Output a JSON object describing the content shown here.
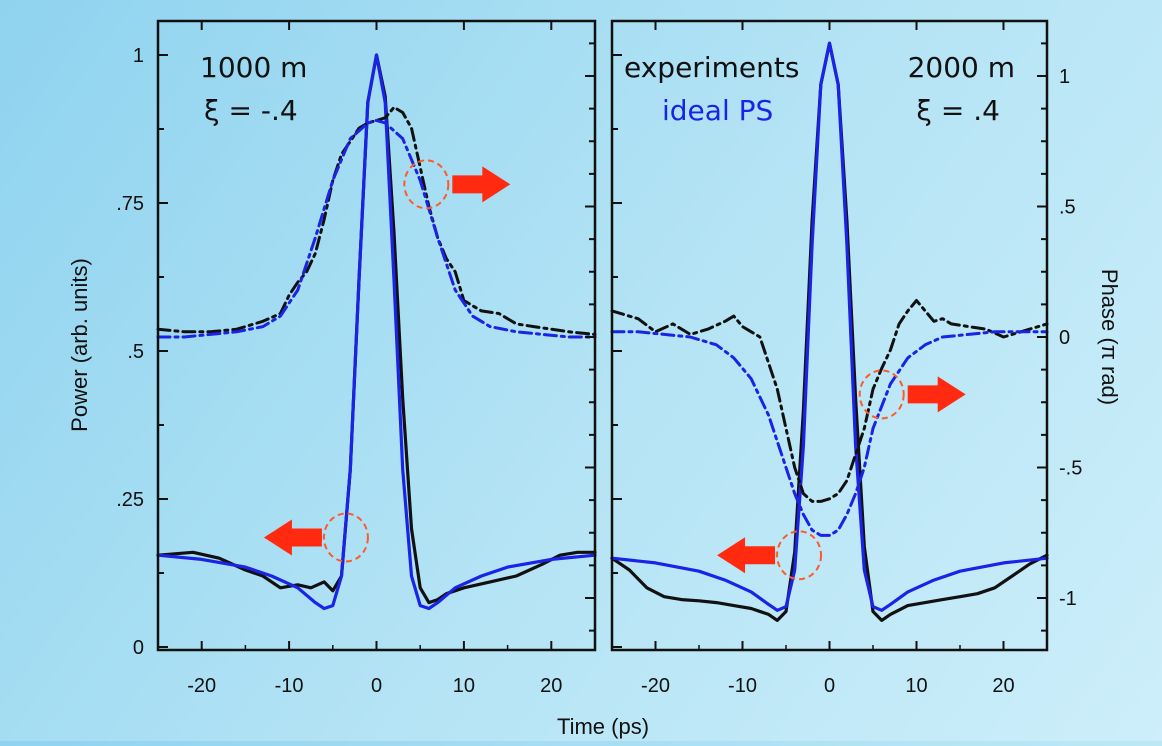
{
  "colors": {
    "experiment": "#111111",
    "ideal": "#1a23e6",
    "arrow": "#ff2a10",
    "circle": "#ff5a2a",
    "frame": "#111111"
  },
  "chart_data": {
    "type": "line",
    "xlabel": "Time (ps)",
    "ylabel_left": "Power (arb. units)",
    "ylabel_right": "Phase (π rad)",
    "xlim": [
      -25,
      25
    ],
    "x_ticks": [
      -20,
      -10,
      0,
      10,
      20
    ],
    "x_tick_labels": [
      "-20",
      "-10",
      "0",
      "10",
      "20"
    ],
    "power_ylim": [
      0,
      1.0
    ],
    "power_ticks": [
      0,
      0.25,
      0.5,
      0.75,
      1
    ],
    "power_tick_labels": [
      "0",
      ".25",
      ".5",
      ".75",
      "1"
    ],
    "phase_ylim": [
      -1.2,
      1.2
    ],
    "phase_ticks": [
      -1,
      -0.5,
      0,
      0.5,
      1
    ],
    "phase_tick_labels": [
      "-1",
      "-.5",
      "0",
      ".5",
      "1"
    ],
    "legend": {
      "experiments": "experiments",
      "ideal": "ideal PS",
      "placement": "top-right"
    },
    "panels": [
      {
        "distance_label": "1000 m",
        "xi_label": "ξ = -.4",
        "series": [
          {
            "key": "experiments-power",
            "axis": "power",
            "style": "solid",
            "x": [
              -25,
              -21,
              -18,
              -15,
              -13,
              -11,
              -9,
              -7.5,
              -6,
              -5,
              -4,
              -3,
              -2,
              -1,
              0,
              1,
              2,
              3,
              4,
              5,
              6,
              7,
              8,
              10,
              13,
              16,
              19,
              21,
              23,
              25
            ],
            "y": [
              0.155,
              0.16,
              0.15,
              0.13,
              0.12,
              0.1,
              0.105,
              0.1,
              0.11,
              0.095,
              0.12,
              0.3,
              0.62,
              0.92,
              1.0,
              0.93,
              0.7,
              0.42,
              0.2,
              0.1,
              0.075,
              0.08,
              0.09,
              0.1,
              0.11,
              0.12,
              0.14,
              0.155,
              0.16,
              0.16
            ]
          },
          {
            "key": "ideal-power",
            "axis": "power",
            "style": "solid",
            "x": [
              -25,
              -20,
              -15,
              -12,
              -9,
              -7,
              -6,
              -5,
              -4,
              -3,
              -2,
              -1,
              0,
              1,
              2,
              3,
              4,
              5,
              6,
              7,
              9,
              12,
              15,
              20,
              25
            ],
            "y": [
              0.155,
              0.148,
              0.135,
              0.12,
              0.1,
              0.075,
              0.065,
              0.07,
              0.12,
              0.3,
              0.62,
              0.92,
              1.0,
              0.92,
              0.62,
              0.3,
              0.12,
              0.07,
              0.065,
              0.075,
              0.1,
              0.12,
              0.135,
              0.148,
              0.155
            ]
          },
          {
            "key": "experiments-phase",
            "axis": "phase",
            "style": "dashdot",
            "x": [
              -25,
              -22,
              -19,
              -16,
              -13,
              -11,
              -10,
              -9,
              -8,
              -7,
              -6,
              -5,
              -4,
              -3,
              -2,
              -1,
              0,
              1,
              2,
              3,
              4,
              5,
              6,
              7,
              8,
              9,
              10,
              11,
              12,
              14,
              16,
              18,
              20,
              22,
              25
            ],
            "y": [
              0.03,
              0.02,
              0.02,
              0.03,
              0.06,
              0.09,
              0.16,
              0.21,
              0.25,
              0.32,
              0.45,
              0.6,
              0.7,
              0.75,
              0.8,
              0.82,
              0.83,
              0.84,
              0.88,
              0.86,
              0.8,
              0.65,
              0.5,
              0.38,
              0.3,
              0.25,
              0.14,
              0.12,
              0.1,
              0.09,
              0.05,
              0.04,
              0.03,
              0.02,
              0.01
            ]
          },
          {
            "key": "ideal-phase",
            "axis": "phase",
            "style": "dashdot",
            "x": [
              -25,
              -22,
              -19,
              -16,
              -13,
              -11,
              -9,
              -7,
              -5,
              -3,
              -1,
              0,
              1,
              3,
              5,
              7,
              9,
              11,
              13,
              16,
              19,
              22,
              25
            ],
            "y": [
              0.0,
              0.0,
              0.01,
              0.02,
              0.04,
              0.08,
              0.18,
              0.38,
              0.6,
              0.76,
              0.82,
              0.83,
              0.82,
              0.76,
              0.6,
              0.38,
              0.18,
              0.08,
              0.04,
              0.02,
              0.01,
              0.0,
              0.0
            ]
          }
        ],
        "markers": [
          {
            "circle": [
              5.7,
              0.585
            ],
            "arrow": "right",
            "target": "phase"
          },
          {
            "circle": [
              -3.5,
              0.185
            ],
            "arrow": "left",
            "target": "power"
          }
        ]
      },
      {
        "distance_label": "2000 m",
        "xi_label": "ξ = .4",
        "series": [
          {
            "key": "experiments-power",
            "axis": "power",
            "style": "solid",
            "x": [
              -25,
              -23,
              -21,
              -19,
              -17,
              -15,
              -13,
              -11,
              -9,
              -7,
              -6,
              -5,
              -4,
              -3,
              -2,
              -1,
              0,
              1,
              2,
              3,
              4,
              5,
              6,
              7,
              9,
              11,
              13,
              15,
              17,
              19,
              21,
              23,
              25
            ],
            "y": [
              0.15,
              0.13,
              0.1,
              0.085,
              0.08,
              0.078,
              0.075,
              0.07,
              0.065,
              0.055,
              0.045,
              0.06,
              0.16,
              0.4,
              0.72,
              0.95,
              1.02,
              0.95,
              0.72,
              0.42,
              0.17,
              0.06,
              0.045,
              0.055,
              0.07,
              0.075,
              0.08,
              0.085,
              0.09,
              0.1,
              0.12,
              0.14,
              0.155
            ]
          },
          {
            "key": "ideal-power",
            "axis": "power",
            "style": "solid",
            "x": [
              -25,
              -20,
              -15,
              -12,
              -9,
              -7,
              -6,
              -5,
              -4,
              -3,
              -2,
              -1,
              0,
              1,
              2,
              3,
              4,
              5,
              6,
              7,
              9,
              12,
              15,
              20,
              25
            ],
            "y": [
              0.15,
              0.142,
              0.128,
              0.113,
              0.093,
              0.072,
              0.062,
              0.068,
              0.13,
              0.34,
              0.68,
              0.95,
              1.02,
              0.95,
              0.68,
              0.34,
              0.13,
              0.068,
              0.062,
              0.072,
              0.093,
              0.113,
              0.128,
              0.142,
              0.15
            ]
          },
          {
            "key": "experiments-phase",
            "axis": "phase",
            "style": "dashdot",
            "x": [
              -25,
              -22,
              -20,
              -18,
              -16,
              -14,
              -12,
              -11,
              -10,
              -9,
              -8,
              -7,
              -6,
              -5,
              -4,
              -3,
              -2,
              -1,
              0,
              1,
              2,
              3,
              4,
              5,
              6,
              7,
              8,
              9,
              10,
              11,
              12,
              13,
              14,
              16,
              18,
              20,
              22,
              25
            ],
            "y": [
              0.1,
              0.07,
              0.02,
              0.05,
              0.01,
              0.03,
              0.06,
              0.08,
              0.04,
              0.02,
              0.0,
              -0.1,
              -0.2,
              -0.35,
              -0.5,
              -0.6,
              -0.63,
              -0.63,
              -0.62,
              -0.6,
              -0.55,
              -0.45,
              -0.35,
              -0.2,
              -0.12,
              -0.05,
              0.05,
              0.1,
              0.14,
              0.1,
              0.06,
              0.07,
              0.05,
              0.04,
              0.03,
              0.0,
              0.02,
              0.05
            ]
          },
          {
            "key": "ideal-phase",
            "axis": "phase",
            "style": "dashdot",
            "x": [
              -25,
              -22,
              -19,
              -16,
              -13,
              -11,
              -9,
              -7,
              -5,
              -4,
              -3,
              -2,
              -1,
              0,
              1,
              2,
              3,
              4,
              5,
              7,
              9,
              11,
              13,
              16,
              19,
              22,
              25
            ],
            "y": [
              0.02,
              0.02,
              0.01,
              0.0,
              -0.03,
              -0.08,
              -0.16,
              -0.3,
              -0.5,
              -0.6,
              -0.68,
              -0.74,
              -0.76,
              -0.76,
              -0.74,
              -0.68,
              -0.6,
              -0.5,
              -0.35,
              -0.18,
              -0.08,
              -0.03,
              0.0,
              0.01,
              0.02,
              0.02,
              0.02
            ]
          }
        ],
        "markers": [
          {
            "circle": [
              6.0,
              -0.22
            ],
            "arrow": "right",
            "target": "phase"
          },
          {
            "circle": [
              -3.5,
              0.155
            ],
            "arrow": "left",
            "target": "power"
          }
        ]
      }
    ]
  }
}
